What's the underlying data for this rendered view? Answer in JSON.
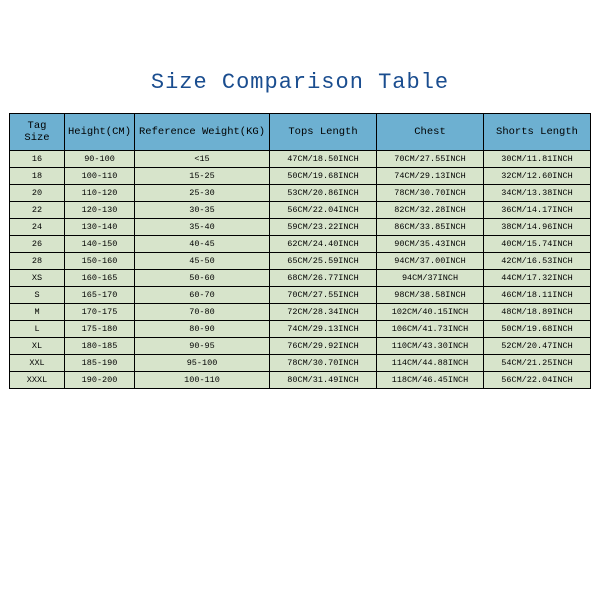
{
  "title": "Size Comparison Table",
  "table": {
    "type": "table",
    "header_bg": "#6db0d1",
    "cell_bg": "#d7e4cb",
    "border_color": "#000000",
    "columns": [
      "Tag Size",
      "Height(CM)",
      "Reference Weight(KG)",
      "Tops Length",
      "Chest",
      "Shorts Length"
    ],
    "rows": [
      [
        "16",
        "90-100",
        "<15",
        "47CM/18.50INCH",
        "70CM/27.55INCH",
        "30CM/11.81INCH"
      ],
      [
        "18",
        "100-110",
        "15-25",
        "50CM/19.68INCH",
        "74CM/29.13INCH",
        "32CM/12.60INCH"
      ],
      [
        "20",
        "110-120",
        "25-30",
        "53CM/20.86INCH",
        "78CM/30.70INCH",
        "34CM/13.38INCH"
      ],
      [
        "22",
        "120-130",
        "30-35",
        "56CM/22.04INCH",
        "82CM/32.28INCH",
        "36CM/14.17INCH"
      ],
      [
        "24",
        "130-140",
        "35-40",
        "59CM/23.22INCH",
        "86CM/33.85INCH",
        "38CM/14.96INCH"
      ],
      [
        "26",
        "140-150",
        "40-45",
        "62CM/24.40INCH",
        "90CM/35.43INCH",
        "40CM/15.74INCH"
      ],
      [
        "28",
        "150-160",
        "45-50",
        "65CM/25.59INCH",
        "94CM/37.00INCH",
        "42CM/16.53INCH"
      ],
      [
        "XS",
        "160-165",
        "50-60",
        "68CM/26.77INCH",
        "94CM/37INCH",
        "44CM/17.32INCH"
      ],
      [
        "S",
        "165-170",
        "60-70",
        "70CM/27.55INCH",
        "98CM/38.58INCH",
        "46CM/18.11INCH"
      ],
      [
        "M",
        "170-175",
        "70-80",
        "72CM/28.34INCH",
        "102CM/40.15INCH",
        "48CM/18.89INCH"
      ],
      [
        "L",
        "175-180",
        "80-90",
        "74CM/29.13INCH",
        "106CM/41.73INCH",
        "50CM/19.68INCH"
      ],
      [
        "XL",
        "180-185",
        "90-95",
        "76CM/29.92INCH",
        "110CM/43.30INCH",
        "52CM/20.47INCH"
      ],
      [
        "XXL",
        "185-190",
        "95-100",
        "78CM/30.70INCH",
        "114CM/44.88INCH",
        "54CM/21.25INCH"
      ],
      [
        "XXXL",
        "190-200",
        "100-110",
        "80CM/31.49INCH",
        "118CM/46.45INCH",
        "56CM/22.04INCH"
      ]
    ]
  }
}
